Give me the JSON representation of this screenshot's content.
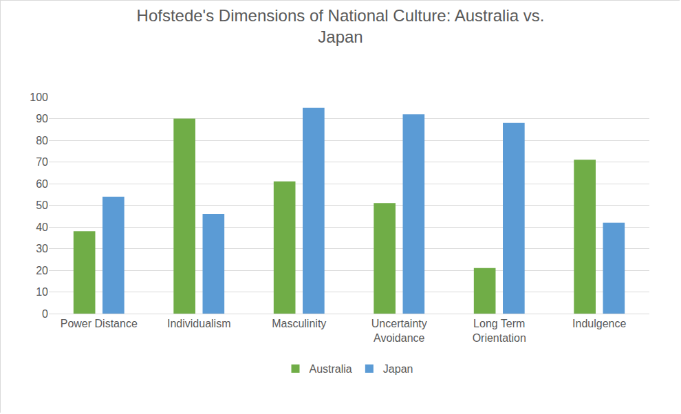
{
  "chart_data": {
    "type": "bar",
    "title": "Hofstede's Dimensions of National Culture: Australia vs. Japan",
    "categories": [
      "Power Distance",
      "Individualism",
      "Masculinity",
      "Uncertainty Avoidance",
      "Long Term Orientation",
      "Indulgence"
    ],
    "series": [
      {
        "name": "Australia",
        "color": "#70ad47",
        "values": [
          38,
          90,
          61,
          51,
          21,
          71
        ]
      },
      {
        "name": "Japan",
        "color": "#5b9bd5",
        "values": [
          54,
          46,
          95,
          92,
          88,
          42
        ]
      }
    ],
    "ylim": [
      0,
      100
    ],
    "yticks": [
      0,
      10,
      20,
      30,
      40,
      50,
      60,
      70,
      80,
      90,
      100
    ],
    "grid": true,
    "legend": "bottom"
  }
}
